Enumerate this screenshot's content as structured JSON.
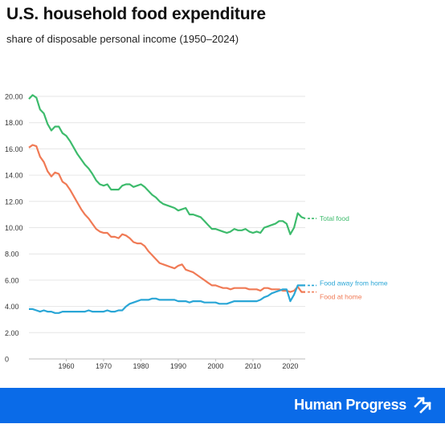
{
  "header": {
    "title": "U.S. household food expenditure",
    "subtitle": "share of disposable personal income (1950–2024)"
  },
  "footer": {
    "brand": "Human Progress",
    "brand_color": "#0a6be8",
    "logo_icon": "double-arrow-up-right-icon"
  },
  "chart_data": {
    "type": "line",
    "ylim": [
      0,
      20
    ],
    "yticks": [
      "0",
      "2.00",
      "4.00",
      "6.00",
      "8.00",
      "10.00",
      "12.00",
      "14.00",
      "16.00",
      "18.00",
      "20.00"
    ],
    "xlim": [
      1950,
      2024
    ],
    "xticks": [
      "1960",
      "1970",
      "1980",
      "1990",
      "2000",
      "2010",
      "2020"
    ],
    "grid": true,
    "legend": "end-of-line labels",
    "series": [
      {
        "name": "Total food",
        "color": "#3dbb6c",
        "points": [
          [
            1950,
            19.8
          ],
          [
            1951,
            20.1
          ],
          [
            1952,
            19.9
          ],
          [
            1953,
            19.0
          ],
          [
            1954,
            18.7
          ],
          [
            1955,
            17.9
          ],
          [
            1956,
            17.4
          ],
          [
            1957,
            17.7
          ],
          [
            1958,
            17.7
          ],
          [
            1959,
            17.2
          ],
          [
            1960,
            17.0
          ],
          [
            1961,
            16.6
          ],
          [
            1962,
            16.1
          ],
          [
            1963,
            15.6
          ],
          [
            1964,
            15.2
          ],
          [
            1965,
            14.8
          ],
          [
            1966,
            14.5
          ],
          [
            1967,
            14.1
          ],
          [
            1968,
            13.6
          ],
          [
            1969,
            13.3
          ],
          [
            1970,
            13.2
          ],
          [
            1971,
            13.3
          ],
          [
            1972,
            12.9
          ],
          [
            1973,
            12.9
          ],
          [
            1974,
            12.9
          ],
          [
            1975,
            13.2
          ],
          [
            1976,
            13.3
          ],
          [
            1977,
            13.3
          ],
          [
            1978,
            13.1
          ],
          [
            1979,
            13.2
          ],
          [
            1980,
            13.3
          ],
          [
            1981,
            13.1
          ],
          [
            1982,
            12.8
          ],
          [
            1983,
            12.5
          ],
          [
            1984,
            12.3
          ],
          [
            1985,
            12.0
          ],
          [
            1986,
            11.8
          ],
          [
            1987,
            11.7
          ],
          [
            1988,
            11.6
          ],
          [
            1989,
            11.5
          ],
          [
            1990,
            11.3
          ],
          [
            1991,
            11.4
          ],
          [
            1992,
            11.5
          ],
          [
            1993,
            11.0
          ],
          [
            1994,
            11.0
          ],
          [
            1995,
            10.9
          ],
          [
            1996,
            10.8
          ],
          [
            1997,
            10.5
          ],
          [
            1998,
            10.2
          ],
          [
            1999,
            9.9
          ],
          [
            2000,
            9.9
          ],
          [
            2001,
            9.8
          ],
          [
            2002,
            9.7
          ],
          [
            2003,
            9.6
          ],
          [
            2004,
            9.7
          ],
          [
            2005,
            9.9
          ],
          [
            2006,
            9.8
          ],
          [
            2007,
            9.8
          ],
          [
            2008,
            9.9
          ],
          [
            2009,
            9.7
          ],
          [
            2010,
            9.6
          ],
          [
            2011,
            9.7
          ],
          [
            2012,
            9.6
          ],
          [
            2013,
            10.0
          ],
          [
            2014,
            10.1
          ],
          [
            2015,
            10.2
          ],
          [
            2016,
            10.3
          ],
          [
            2017,
            10.5
          ],
          [
            2018,
            10.5
          ],
          [
            2019,
            10.3
          ],
          [
            2020,
            9.5
          ],
          [
            2021,
            10.0
          ],
          [
            2022,
            11.1
          ],
          [
            2023,
            10.8
          ],
          [
            2024,
            10.7
          ]
        ]
      },
      {
        "name": "Food at home",
        "color": "#f07a55",
        "points": [
          [
            1950,
            16.1
          ],
          [
            1951,
            16.3
          ],
          [
            1952,
            16.2
          ],
          [
            1953,
            15.4
          ],
          [
            1954,
            15.0
          ],
          [
            1955,
            14.3
          ],
          [
            1956,
            13.9
          ],
          [
            1957,
            14.2
          ],
          [
            1958,
            14.1
          ],
          [
            1959,
            13.5
          ],
          [
            1960,
            13.3
          ],
          [
            1961,
            12.9
          ],
          [
            1962,
            12.4
          ],
          [
            1963,
            11.9
          ],
          [
            1964,
            11.4
          ],
          [
            1965,
            11.0
          ],
          [
            1966,
            10.7
          ],
          [
            1967,
            10.3
          ],
          [
            1968,
            9.9
          ],
          [
            1969,
            9.7
          ],
          [
            1970,
            9.6
          ],
          [
            1971,
            9.6
          ],
          [
            1972,
            9.3
          ],
          [
            1973,
            9.3
          ],
          [
            1974,
            9.2
          ],
          [
            1975,
            9.5
          ],
          [
            1976,
            9.4
          ],
          [
            1977,
            9.2
          ],
          [
            1978,
            8.9
          ],
          [
            1979,
            8.8
          ],
          [
            1980,
            8.8
          ],
          [
            1981,
            8.6
          ],
          [
            1982,
            8.2
          ],
          [
            1983,
            7.9
          ],
          [
            1984,
            7.6
          ],
          [
            1985,
            7.3
          ],
          [
            1986,
            7.2
          ],
          [
            1987,
            7.1
          ],
          [
            1988,
            7.0
          ],
          [
            1989,
            6.9
          ],
          [
            1990,
            7.1
          ],
          [
            1991,
            7.2
          ],
          [
            1992,
            6.8
          ],
          [
            1993,
            6.7
          ],
          [
            1994,
            6.6
          ],
          [
            1995,
            6.4
          ],
          [
            1996,
            6.2
          ],
          [
            1997,
            6.0
          ],
          [
            1998,
            5.8
          ],
          [
            1999,
            5.6
          ],
          [
            2000,
            5.6
          ],
          [
            2001,
            5.5
          ],
          [
            2002,
            5.4
          ],
          [
            2003,
            5.4
          ],
          [
            2004,
            5.3
          ],
          [
            2005,
            5.4
          ],
          [
            2006,
            5.4
          ],
          [
            2007,
            5.4
          ],
          [
            2008,
            5.4
          ],
          [
            2009,
            5.3
          ],
          [
            2010,
            5.3
          ],
          [
            2011,
            5.3
          ],
          [
            2012,
            5.2
          ],
          [
            2013,
            5.4
          ],
          [
            2014,
            5.4
          ],
          [
            2015,
            5.3
          ],
          [
            2016,
            5.3
          ],
          [
            2017,
            5.3
          ],
          [
            2018,
            5.2
          ],
          [
            2019,
            5.2
          ],
          [
            2020,
            5.1
          ],
          [
            2021,
            5.2
          ],
          [
            2022,
            5.5
          ],
          [
            2023,
            5.1
          ],
          [
            2024,
            5.1
          ]
        ]
      },
      {
        "name": "Food away from home",
        "color": "#2aa6d6",
        "points": [
          [
            1950,
            3.8
          ],
          [
            1951,
            3.8
          ],
          [
            1952,
            3.7
          ],
          [
            1953,
            3.6
          ],
          [
            1954,
            3.7
          ],
          [
            1955,
            3.6
          ],
          [
            1956,
            3.6
          ],
          [
            1957,
            3.5
          ],
          [
            1958,
            3.5
          ],
          [
            1959,
            3.6
          ],
          [
            1960,
            3.6
          ],
          [
            1961,
            3.6
          ],
          [
            1962,
            3.6
          ],
          [
            1963,
            3.6
          ],
          [
            1964,
            3.6
          ],
          [
            1965,
            3.6
          ],
          [
            1966,
            3.7
          ],
          [
            1967,
            3.6
          ],
          [
            1968,
            3.6
          ],
          [
            1969,
            3.6
          ],
          [
            1970,
            3.6
          ],
          [
            1971,
            3.7
          ],
          [
            1972,
            3.6
          ],
          [
            1973,
            3.6
          ],
          [
            1974,
            3.7
          ],
          [
            1975,
            3.7
          ],
          [
            1976,
            4.0
          ],
          [
            1977,
            4.2
          ],
          [
            1978,
            4.3
          ],
          [
            1979,
            4.4
          ],
          [
            1980,
            4.5
          ],
          [
            1981,
            4.5
          ],
          [
            1982,
            4.5
          ],
          [
            1983,
            4.6
          ],
          [
            1984,
            4.6
          ],
          [
            1985,
            4.5
          ],
          [
            1986,
            4.5
          ],
          [
            1987,
            4.5
          ],
          [
            1988,
            4.5
          ],
          [
            1989,
            4.5
          ],
          [
            1990,
            4.4
          ],
          [
            1991,
            4.4
          ],
          [
            1992,
            4.4
          ],
          [
            1993,
            4.3
          ],
          [
            1994,
            4.4
          ],
          [
            1995,
            4.4
          ],
          [
            1996,
            4.4
          ],
          [
            1997,
            4.3
          ],
          [
            1998,
            4.3
          ],
          [
            1999,
            4.3
          ],
          [
            2000,
            4.3
          ],
          [
            2001,
            4.2
          ],
          [
            2002,
            4.2
          ],
          [
            2003,
            4.2
          ],
          [
            2004,
            4.3
          ],
          [
            2005,
            4.4
          ],
          [
            2006,
            4.4
          ],
          [
            2007,
            4.4
          ],
          [
            2008,
            4.4
          ],
          [
            2009,
            4.4
          ],
          [
            2010,
            4.4
          ],
          [
            2011,
            4.4
          ],
          [
            2012,
            4.5
          ],
          [
            2013,
            4.7
          ],
          [
            2014,
            4.8
          ],
          [
            2015,
            5.0
          ],
          [
            2016,
            5.1
          ],
          [
            2017,
            5.2
          ],
          [
            2018,
            5.3
          ],
          [
            2019,
            5.3
          ],
          [
            2020,
            4.4
          ],
          [
            2021,
            4.9
          ],
          [
            2022,
            5.6
          ],
          [
            2023,
            5.6
          ],
          [
            2024,
            5.6
          ]
        ]
      }
    ]
  }
}
